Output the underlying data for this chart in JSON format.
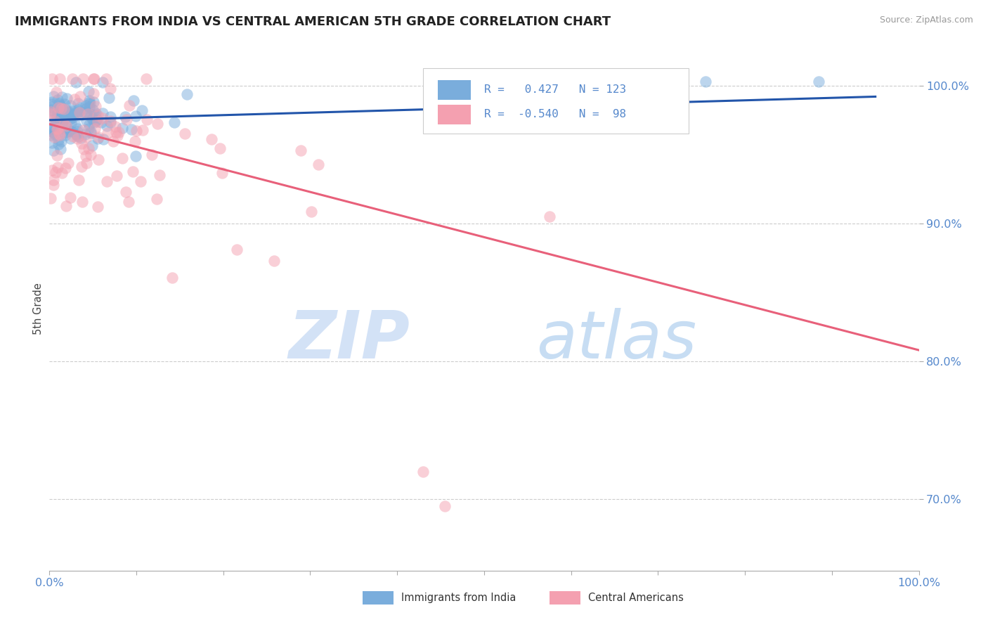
{
  "title": "IMMIGRANTS FROM INDIA VS CENTRAL AMERICAN 5TH GRADE CORRELATION CHART",
  "source_text": "Source: ZipAtlas.com",
  "ylabel": "5th Grade",
  "xlim": [
    0.0,
    1.0
  ],
  "ylim": [
    0.648,
    1.028
  ],
  "yticks": [
    0.7,
    0.8,
    0.9,
    1.0
  ],
  "ytick_labels": [
    "70.0%",
    "80.0%",
    "90.0%",
    "100.0%"
  ],
  "blue_R": 0.427,
  "blue_N": 123,
  "pink_R": -0.54,
  "pink_N": 98,
  "blue_color": "#7AADDC",
  "pink_color": "#F4A0B0",
  "blue_line_color": "#2255AA",
  "pink_line_color": "#E8607A",
  "title_fontsize": 13,
  "axis_label_color": "#5588CC",
  "grid_color": "#CCCCCC",
  "background_color": "#FFFFFF",
  "blue_line_x0": 0.0,
  "blue_line_x1": 0.95,
  "blue_line_y0": 0.975,
  "blue_line_y1": 0.992,
  "pink_line_x0": 0.0,
  "pink_line_x1": 1.0,
  "pink_line_y0": 0.972,
  "pink_line_y1": 0.808
}
